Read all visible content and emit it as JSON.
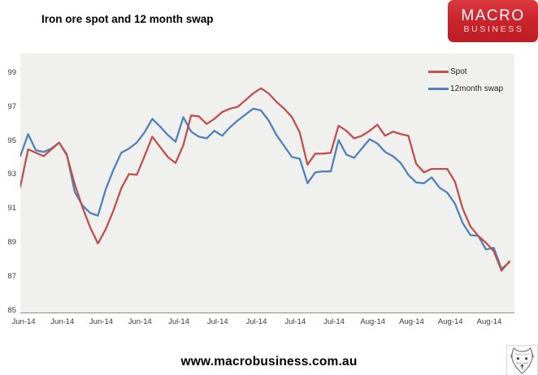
{
  "title": "Iron ore spot and 12 month swap",
  "logo": {
    "line1": "MACRO",
    "line2": "BUSINESS",
    "bg_color": "#c9242b"
  },
  "footer": {
    "website": "www.macrobusiness.com.au"
  },
  "chart_data": {
    "type": "line",
    "title": "Iron ore spot and 12 month swap",
    "x_labels": [
      "Jun-14",
      "Jun-14",
      "Jun-14",
      "Jun-14",
      "Jul-14",
      "Jul-14",
      "Jul-14",
      "Jul-14",
      "Jul-14",
      "Aug-14",
      "Aug-14",
      "Aug-14",
      "Aug-14"
    ],
    "x_tick_every": 5,
    "y_ticks": [
      99,
      97,
      95,
      93,
      91,
      89,
      87,
      85
    ],
    "ylim": [
      85,
      99
    ],
    "grid": false,
    "plot_bg": "#f0f0ef",
    "legend_position": "top-right-inside",
    "series": [
      {
        "name": "Spot",
        "color": "#C0504D",
        "values": [
          92.3,
          94.5,
          94.3,
          94.1,
          94.5,
          94.9,
          94.15,
          92.45,
          91.1,
          89.9,
          88.95,
          89.8,
          90.9,
          92.2,
          93.05,
          93.0,
          94.1,
          95.25,
          94.65,
          94.05,
          93.7,
          94.75,
          96.5,
          96.45,
          96.0,
          96.3,
          96.7,
          96.9,
          97.0,
          97.4,
          97.8,
          98.1,
          97.8,
          97.3,
          96.9,
          96.4,
          95.5,
          93.6,
          94.25,
          94.25,
          94.3,
          95.9,
          95.6,
          95.15,
          95.3,
          95.6,
          95.95,
          95.3,
          95.55,
          95.4,
          95.3,
          93.65,
          93.15,
          93.35,
          93.35,
          93.35,
          92.6,
          91.0,
          89.95,
          89.4,
          89.0,
          88.5,
          87.35,
          87.9
        ]
      },
      {
        "name": "12month swap",
        "color": "#4F81BD",
        "values": [
          94.1,
          95.4,
          94.45,
          94.35,
          94.55,
          94.9,
          94.2,
          92.0,
          91.2,
          90.75,
          90.6,
          92.15,
          93.3,
          94.3,
          94.55,
          94.9,
          95.5,
          96.3,
          95.85,
          95.35,
          94.95,
          96.4,
          95.55,
          95.25,
          95.15,
          95.6,
          95.3,
          95.8,
          96.2,
          96.55,
          96.9,
          96.8,
          96.2,
          95.35,
          94.7,
          94.05,
          93.95,
          92.5,
          93.15,
          93.2,
          93.2,
          95.05,
          94.2,
          94.0,
          94.55,
          95.1,
          94.85,
          94.35,
          94.1,
          93.7,
          93.0,
          92.55,
          92.5,
          92.85,
          92.25,
          91.95,
          91.3,
          90.15,
          89.45,
          89.4,
          88.6,
          88.7,
          87.45,
          87.85
        ]
      }
    ]
  }
}
